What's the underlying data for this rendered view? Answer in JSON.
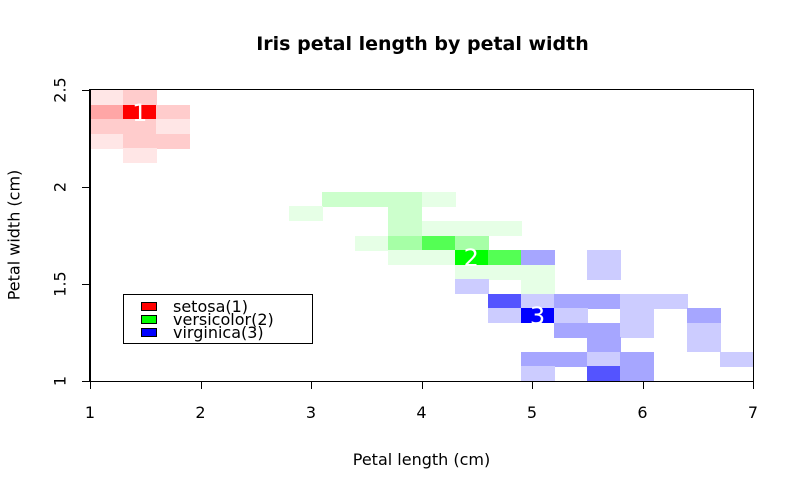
{
  "chart_data": {
    "type": "heatmap",
    "title": "Iris petal length by petal width",
    "xlabel": "Petal length (cm)",
    "ylabel": "Petal width (cm)",
    "xlim": [
      1,
      7
    ],
    "ylim": [
      1,
      2.5
    ],
    "xticks": [
      "1",
      "2",
      "3",
      "4",
      "5",
      "6",
      "7"
    ],
    "yticks": [
      "1",
      "1.5",
      "2",
      "2.5"
    ],
    "grid": false,
    "bin_width_x": 0.3,
    "bin_height_y": 0.075,
    "legend_position": "inside-left",
    "legend": [
      {
        "label": "setosa(1)",
        "color": "#ff0000"
      },
      {
        "label": "versicolor(2)",
        "color": "#00ff00"
      },
      {
        "label": "virginica(3)",
        "color": "#0000ff"
      }
    ],
    "intensity_levels": {
      "1": 0.1,
      "2": 0.2,
      "3": 0.35,
      "4": 0.67,
      "5": 1.0
    },
    "series": [
      {
        "name": "setosa",
        "group": 1,
        "color": "#ff0000",
        "cells": [
          {
            "col": 0,
            "row": 0,
            "level": 1
          },
          {
            "col": 1,
            "row": 0,
            "level": 2
          },
          {
            "col": 0,
            "row": 1,
            "level": 3
          },
          {
            "col": 1,
            "row": 1,
            "level": 5
          },
          {
            "col": 2,
            "row": 1,
            "level": 2
          },
          {
            "col": 0,
            "row": 2,
            "level": 2
          },
          {
            "col": 1,
            "row": 2,
            "level": 2
          },
          {
            "col": 2,
            "row": 2,
            "level": 1
          },
          {
            "col": 0,
            "row": 3,
            "level": 1
          },
          {
            "col": 1,
            "row": 3,
            "level": 2
          },
          {
            "col": 2,
            "row": 3,
            "level": 2
          },
          {
            "col": 1,
            "row": 4,
            "level": 1
          }
        ],
        "label": {
          "text": "1",
          "col": 1,
          "row": 1
        }
      },
      {
        "name": "versicolor",
        "group": 2,
        "color": "#00ff00",
        "cells": [
          {
            "col": 7,
            "row": 7,
            "level": 2
          },
          {
            "col": 8,
            "row": 7,
            "level": 2
          },
          {
            "col": 9,
            "row": 7,
            "level": 2
          },
          {
            "col": 10,
            "row": 7,
            "level": 1
          },
          {
            "col": 6,
            "row": 8,
            "level": 1
          },
          {
            "col": 9,
            "row": 8,
            "level": 2
          },
          {
            "col": 9,
            "row": 9,
            "level": 2
          },
          {
            "col": 10,
            "row": 9,
            "level": 1
          },
          {
            "col": 11,
            "row": 9,
            "level": 1
          },
          {
            "col": 12,
            "row": 9,
            "level": 1
          },
          {
            "col": 8,
            "row": 10,
            "level": 1
          },
          {
            "col": 9,
            "row": 10,
            "level": 3
          },
          {
            "col": 10,
            "row": 10,
            "level": 4
          },
          {
            "col": 11,
            "row": 10,
            "level": 3
          },
          {
            "col": 9,
            "row": 11,
            "level": 1
          },
          {
            "col": 10,
            "row": 11,
            "level": 1
          },
          {
            "col": 11,
            "row": 11,
            "level": 5
          },
          {
            "col": 12,
            "row": 11,
            "level": 4
          },
          {
            "col": 11,
            "row": 12,
            "level": 1
          },
          {
            "col": 12,
            "row": 12,
            "level": 1
          },
          {
            "col": 13,
            "row": 12,
            "level": 1
          },
          {
            "col": 13,
            "row": 13,
            "level": 1
          }
        ],
        "label": {
          "text": "2",
          "col": 11,
          "row": 11
        }
      },
      {
        "name": "virginica",
        "group": 3,
        "color": "#0000ff",
        "cells": [
          {
            "col": 13,
            "row": 11,
            "level": 3
          },
          {
            "col": 15,
            "row": 11,
            "level": 2
          },
          {
            "col": 15,
            "row": 12,
            "level": 2
          },
          {
            "col": 11,
            "row": 13,
            "level": 2
          },
          {
            "col": 12,
            "row": 14,
            "level": 4
          },
          {
            "col": 13,
            "row": 14,
            "level": 2
          },
          {
            "col": 14,
            "row": 14,
            "level": 3
          },
          {
            "col": 15,
            "row": 14,
            "level": 3
          },
          {
            "col": 16,
            "row": 14,
            "level": 2
          },
          {
            "col": 17,
            "row": 14,
            "level": 2
          },
          {
            "col": 12,
            "row": 15,
            "level": 2
          },
          {
            "col": 13,
            "row": 15,
            "level": 5
          },
          {
            "col": 14,
            "row": 15,
            "level": 2
          },
          {
            "col": 16,
            "row": 15,
            "level": 2
          },
          {
            "col": 18,
            "row": 15,
            "level": 3
          },
          {
            "col": 14,
            "row": 16,
            "level": 3
          },
          {
            "col": 15,
            "row": 16,
            "level": 3
          },
          {
            "col": 16,
            "row": 16,
            "level": 2
          },
          {
            "col": 18,
            "row": 16,
            "level": 2
          },
          {
            "col": 15,
            "row": 17,
            "level": 3
          },
          {
            "col": 18,
            "row": 17,
            "level": 2
          },
          {
            "col": 13,
            "row": 18,
            "level": 3
          },
          {
            "col": 14,
            "row": 18,
            "level": 3
          },
          {
            "col": 15,
            "row": 18,
            "level": 2
          },
          {
            "col": 16,
            "row": 18,
            "level": 3
          },
          {
            "col": 19,
            "row": 18,
            "level": 2
          },
          {
            "col": 13,
            "row": 19,
            "level": 2
          },
          {
            "col": 15,
            "row": 19,
            "level": 4
          },
          {
            "col": 16,
            "row": 19,
            "level": 3
          }
        ],
        "label": {
          "text": "3",
          "col": 13,
          "row": 15
        }
      }
    ]
  },
  "title": "Iris petal length by petal width",
  "axes": {
    "xlabel": "Petal length (cm)",
    "ylabel": "Petal width (cm)",
    "xticks": [
      "1",
      "2",
      "3",
      "4",
      "5",
      "6",
      "7"
    ],
    "yticks": [
      "1",
      "1.5",
      "2",
      "2.5"
    ]
  },
  "legend": {
    "items": [
      {
        "label": "setosa(1)",
        "color": "#ff0000"
      },
      {
        "label": "versicolor(2)",
        "color": "#00ff00"
      },
      {
        "label": "virginica(3)",
        "color": "#0000ff"
      }
    ]
  }
}
